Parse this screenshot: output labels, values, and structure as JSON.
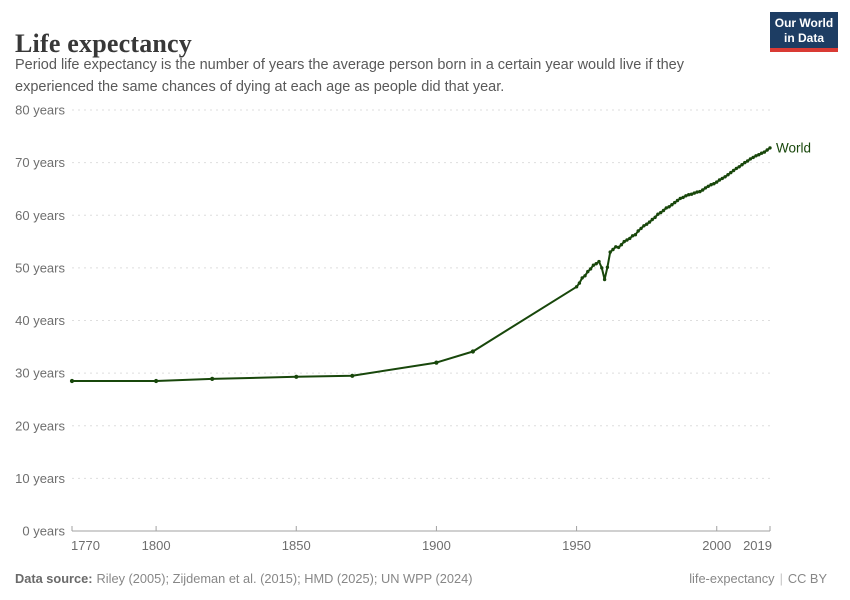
{
  "header": {
    "title": "Life expectancy",
    "subtitle": [
      "Period life expectancy is the number of years the average person born in a certain year would live if they",
      "experienced the same chances of dying at each age as people did that year."
    ],
    "logo": {
      "line1": "Our World",
      "line2": "in Data"
    }
  },
  "chart_data": {
    "type": "line",
    "title": "Life expectancy",
    "xlabel": "",
    "ylabel": "",
    "xlim": [
      1770,
      2019
    ],
    "ylim": [
      0,
      80
    ],
    "grid": "horizontal-dashed",
    "x_ticks": [
      1770,
      1800,
      1850,
      1900,
      1950,
      2000,
      2019
    ],
    "y_ticks": [
      0,
      10,
      20,
      30,
      40,
      50,
      60,
      70,
      80
    ],
    "y_tick_suffix": " years",
    "legend_position": "end-of-line-label",
    "series": [
      {
        "name": "World",
        "color": "#18470B",
        "points": [
          [
            1770,
            28.5
          ],
          [
            1800,
            28.5
          ],
          [
            1820,
            28.9
          ],
          [
            1850,
            29.3
          ],
          [
            1870,
            29.5
          ],
          [
            1900,
            32.0
          ],
          [
            1913,
            34.1
          ],
          [
            1950,
            46.4
          ],
          [
            1951,
            47.1
          ],
          [
            1952,
            48.1
          ],
          [
            1953,
            48.5
          ],
          [
            1954,
            49.3
          ],
          [
            1955,
            49.8
          ],
          [
            1956,
            50.5
          ],
          [
            1957,
            50.8
          ],
          [
            1958,
            51.2
          ],
          [
            1959,
            50.0
          ],
          [
            1960,
            47.8
          ],
          [
            1961,
            50.1
          ],
          [
            1962,
            53.0
          ],
          [
            1963,
            53.5
          ],
          [
            1964,
            54.0
          ],
          [
            1965,
            53.9
          ],
          [
            1966,
            54.4
          ],
          [
            1967,
            55.0
          ],
          [
            1968,
            55.3
          ],
          [
            1969,
            55.6
          ],
          [
            1970,
            56.1
          ],
          [
            1971,
            56.3
          ],
          [
            1972,
            57.0
          ],
          [
            1973,
            57.5
          ],
          [
            1974,
            58.0
          ],
          [
            1975,
            58.3
          ],
          [
            1976,
            58.7
          ],
          [
            1977,
            59.2
          ],
          [
            1978,
            59.6
          ],
          [
            1979,
            60.2
          ],
          [
            1980,
            60.5
          ],
          [
            1981,
            60.9
          ],
          [
            1982,
            61.4
          ],
          [
            1983,
            61.6
          ],
          [
            1984,
            62.0
          ],
          [
            1985,
            62.4
          ],
          [
            1986,
            62.8
          ],
          [
            1987,
            63.2
          ],
          [
            1988,
            63.4
          ],
          [
            1989,
            63.7
          ],
          [
            1990,
            63.9
          ],
          [
            1991,
            64.0
          ],
          [
            1992,
            64.2
          ],
          [
            1993,
            64.4
          ],
          [
            1994,
            64.5
          ],
          [
            1995,
            64.8
          ],
          [
            1996,
            65.2
          ],
          [
            1997,
            65.5
          ],
          [
            1998,
            65.8
          ],
          [
            1999,
            66.0
          ],
          [
            2000,
            66.3
          ],
          [
            2001,
            66.7
          ],
          [
            2002,
            67.0
          ],
          [
            2003,
            67.3
          ],
          [
            2004,
            67.7
          ],
          [
            2005,
            68.1
          ],
          [
            2006,
            68.5
          ],
          [
            2007,
            68.9
          ],
          [
            2008,
            69.2
          ],
          [
            2009,
            69.6
          ],
          [
            2010,
            70.0
          ],
          [
            2011,
            70.3
          ],
          [
            2012,
            70.7
          ],
          [
            2013,
            71.0
          ],
          [
            2014,
            71.3
          ],
          [
            2015,
            71.5
          ],
          [
            2016,
            71.8
          ],
          [
            2017,
            72.0
          ],
          [
            2018,
            72.4
          ],
          [
            2019,
            72.8
          ]
        ]
      }
    ]
  },
  "colors": {
    "line": "#18470B",
    "grid": "#dedede",
    "axis": "#a1a1a1",
    "tick_label": "#6e6e6e",
    "logo_bg": "#1d3d63",
    "logo_accent": "#d93a34"
  },
  "footer": {
    "source_label": "Data source:",
    "sources": "Riley (2005); Zijdeman et al. (2015); HMD (2025); UN WPP (2024)",
    "slug": "life-expectancy",
    "divider": "|",
    "license": "CC BY"
  }
}
